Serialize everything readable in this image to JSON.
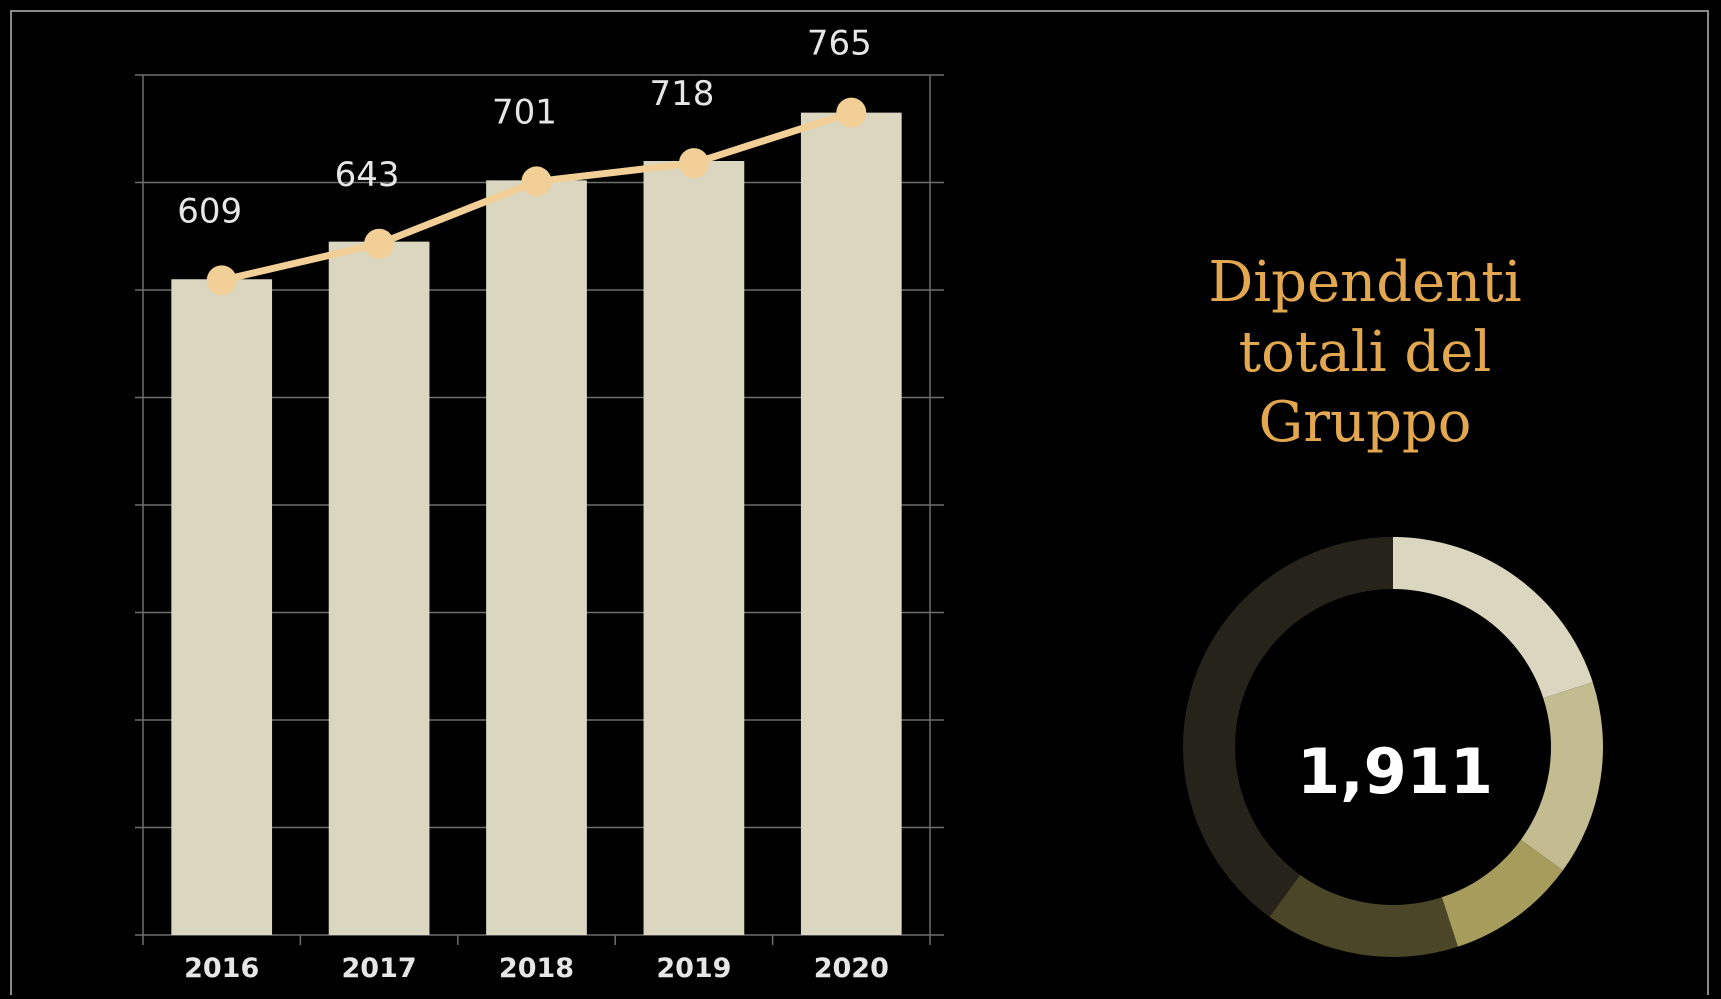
{
  "chart_data": [
    {
      "type": "bar",
      "categories": [
        "2016",
        "2017",
        "2018",
        "2019",
        "2020"
      ],
      "bar_values": [
        610,
        645,
        702,
        720,
        765
      ],
      "series": [
        {
          "name": "",
          "type": "line",
          "values": [
            609,
            643,
            701,
            718,
            765
          ],
          "labels": [
            "609",
            "643",
            "701",
            "718",
            "765"
          ]
        }
      ],
      "ylim": [
        0,
        800
      ],
      "grid": true,
      "colors": {
        "bar": "#dad6bf",
        "line": "#f3cf98",
        "grid": "#6e6e6e"
      }
    },
    {
      "type": "pie",
      "style": "donut",
      "center_label": "1,911",
      "slices": [
        20,
        15,
        10,
        15,
        40
      ],
      "colors": [
        "#dad6bf",
        "#c4bc91",
        "#a69d5c",
        "#4b4627",
        "#25231a"
      ]
    }
  ],
  "side_title_lines": [
    "Dipendenti",
    "totali del",
    "Gruppo"
  ]
}
